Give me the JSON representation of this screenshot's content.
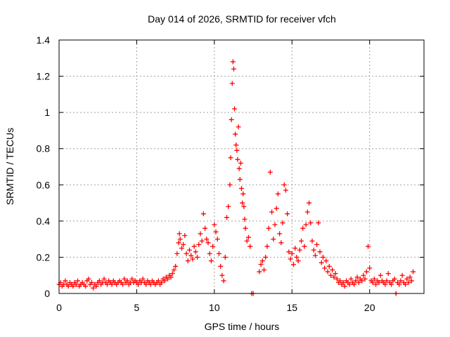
{
  "chart_data": {
    "type": "scatter",
    "title": "Day 014 of 2026, SRMTID for receiver vfch",
    "xlabel": "GPS time / hours",
    "ylabel": "SRMTID / TECUs",
    "xlim": [
      0,
      23.5
    ],
    "ylim": [
      0,
      1.4
    ],
    "x_ticks": [
      0,
      5,
      10,
      15,
      20
    ],
    "x_tick_labels": [
      "0",
      "5",
      "10",
      "15",
      "20"
    ],
    "y_ticks": [
      0,
      0.2,
      0.4,
      0.6,
      0.8,
      1.0,
      1.2,
      1.4
    ],
    "y_tick_labels": [
      "0",
      "0.2",
      "0.4",
      "0.6",
      "0.8",
      "1",
      "1.2",
      "1.4"
    ],
    "grid": true,
    "marker": "+",
    "series": [
      {
        "name": "SRMTID",
        "color": "#ff0000",
        "points": [
          [
            0.0,
            0.05
          ],
          [
            0.1,
            0.06
          ],
          [
            0.2,
            0.04
          ],
          [
            0.3,
            0.05
          ],
          [
            0.4,
            0.07
          ],
          [
            0.5,
            0.05
          ],
          [
            0.6,
            0.04
          ],
          [
            0.7,
            0.06
          ],
          [
            0.8,
            0.05
          ],
          [
            0.9,
            0.04
          ],
          [
            1.0,
            0.06
          ],
          [
            1.1,
            0.05
          ],
          [
            1.2,
            0.07
          ],
          [
            1.3,
            0.04
          ],
          [
            1.4,
            0.05
          ],
          [
            1.5,
            0.06
          ],
          [
            1.6,
            0.05
          ],
          [
            1.7,
            0.04
          ],
          [
            1.8,
            0.07
          ],
          [
            1.9,
            0.08
          ],
          [
            2.0,
            0.05
          ],
          [
            2.1,
            0.06
          ],
          [
            2.2,
            0.03
          ],
          [
            2.3,
            0.05
          ],
          [
            2.4,
            0.04
          ],
          [
            2.5,
            0.06
          ],
          [
            2.6,
            0.07
          ],
          [
            2.7,
            0.05
          ],
          [
            2.8,
            0.06
          ],
          [
            2.9,
            0.08
          ],
          [
            3.0,
            0.06
          ],
          [
            3.1,
            0.05
          ],
          [
            3.2,
            0.07
          ],
          [
            3.3,
            0.06
          ],
          [
            3.4,
            0.05
          ],
          [
            3.5,
            0.07
          ],
          [
            3.6,
            0.06
          ],
          [
            3.7,
            0.05
          ],
          [
            3.8,
            0.06
          ],
          [
            3.9,
            0.07
          ],
          [
            4.0,
            0.06
          ],
          [
            4.1,
            0.05
          ],
          [
            4.2,
            0.08
          ],
          [
            4.3,
            0.06
          ],
          [
            4.4,
            0.07
          ],
          [
            4.5,
            0.05
          ],
          [
            4.6,
            0.06
          ],
          [
            4.7,
            0.08
          ],
          [
            4.8,
            0.06
          ],
          [
            4.9,
            0.07
          ],
          [
            5.0,
            0.06
          ],
          [
            5.1,
            0.05
          ],
          [
            5.2,
            0.07
          ],
          [
            5.3,
            0.06
          ],
          [
            5.4,
            0.08
          ],
          [
            5.5,
            0.06
          ],
          [
            5.6,
            0.05
          ],
          [
            5.7,
            0.07
          ],
          [
            5.8,
            0.06
          ],
          [
            5.9,
            0.05
          ],
          [
            6.0,
            0.07
          ],
          [
            6.1,
            0.06
          ],
          [
            6.2,
            0.05
          ],
          [
            6.3,
            0.06
          ],
          [
            6.4,
            0.07
          ],
          [
            6.5,
            0.05
          ],
          [
            6.6,
            0.06
          ],
          [
            6.7,
            0.08
          ],
          [
            6.8,
            0.07
          ],
          [
            6.9,
            0.09
          ],
          [
            7.0,
            0.08
          ],
          [
            7.1,
            0.1
          ],
          [
            7.2,
            0.09
          ],
          [
            7.3,
            0.11
          ],
          [
            7.4,
            0.13
          ],
          [
            7.5,
            0.15
          ],
          [
            7.6,
            0.22
          ],
          [
            7.7,
            0.28
          ],
          [
            7.75,
            0.33
          ],
          [
            7.8,
            0.3
          ],
          [
            7.9,
            0.25
          ],
          [
            8.0,
            0.27
          ],
          [
            8.1,
            0.32
          ],
          [
            8.2,
            0.22
          ],
          [
            8.3,
            0.18
          ],
          [
            8.4,
            0.24
          ],
          [
            8.5,
            0.21
          ],
          [
            8.6,
            0.19
          ],
          [
            8.7,
            0.26
          ],
          [
            8.8,
            0.23
          ],
          [
            8.9,
            0.2
          ],
          [
            9.0,
            0.27
          ],
          [
            9.1,
            0.33
          ],
          [
            9.2,
            0.29
          ],
          [
            9.3,
            0.44
          ],
          [
            9.4,
            0.36
          ],
          [
            9.5,
            0.3
          ],
          [
            9.6,
            0.28
          ],
          [
            9.7,
            0.22
          ],
          [
            9.8,
            0.18
          ],
          [
            9.9,
            0.26
          ],
          [
            10.0,
            0.38
          ],
          [
            10.1,
            0.34
          ],
          [
            10.2,
            0.3
          ],
          [
            10.3,
            0.22
          ],
          [
            10.4,
            0.15
          ],
          [
            10.5,
            0.1
          ],
          [
            10.6,
            0.07
          ],
          [
            10.7,
            0.2
          ],
          [
            10.8,
            0.42
          ],
          [
            10.9,
            0.48
          ],
          [
            11.0,
            0.6
          ],
          [
            11.05,
            0.75
          ],
          [
            11.1,
            0.96
          ],
          [
            11.15,
            1.16
          ],
          [
            11.2,
            1.28
          ],
          [
            11.25,
            1.24
          ],
          [
            11.3,
            1.02
          ],
          [
            11.35,
            0.88
          ],
          [
            11.4,
            0.82
          ],
          [
            11.45,
            0.79
          ],
          [
            11.5,
            0.74
          ],
          [
            11.55,
            0.92
          ],
          [
            11.6,
            0.69
          ],
          [
            11.65,
            0.63
          ],
          [
            11.7,
            0.72
          ],
          [
            11.75,
            0.58
          ],
          [
            11.8,
            0.5
          ],
          [
            11.85,
            0.55
          ],
          [
            11.9,
            0.48
          ],
          [
            11.95,
            0.41
          ],
          [
            12.0,
            0.36
          ],
          [
            12.1,
            0.29
          ],
          [
            12.2,
            0.31
          ],
          [
            12.3,
            0.26
          ],
          [
            12.4,
            0.0
          ],
          [
            12.5,
            0.0
          ],
          [
            12.9,
            0.12
          ],
          [
            13.0,
            0.16
          ],
          [
            13.1,
            0.18
          ],
          [
            13.2,
            0.13
          ],
          [
            13.3,
            0.2
          ],
          [
            13.4,
            0.26
          ],
          [
            13.5,
            0.36
          ],
          [
            13.6,
            0.67
          ],
          [
            13.7,
            0.45
          ],
          [
            13.8,
            0.3
          ],
          [
            13.9,
            0.38
          ],
          [
            14.0,
            0.47
          ],
          [
            14.1,
            0.55
          ],
          [
            14.2,
            0.33
          ],
          [
            14.3,
            0.28
          ],
          [
            14.4,
            0.39
          ],
          [
            14.5,
            0.6
          ],
          [
            14.6,
            0.57
          ],
          [
            14.7,
            0.44
          ],
          [
            14.8,
            0.23
          ],
          [
            14.9,
            0.19
          ],
          [
            15.0,
            0.22
          ],
          [
            15.1,
            0.16
          ],
          [
            15.2,
            0.25
          ],
          [
            15.3,
            0.2
          ],
          [
            15.4,
            0.18
          ],
          [
            15.5,
            0.24
          ],
          [
            15.6,
            0.29
          ],
          [
            15.7,
            0.36
          ],
          [
            15.8,
            0.26
          ],
          [
            15.9,
            0.38
          ],
          [
            16.0,
            0.45
          ],
          [
            16.1,
            0.5
          ],
          [
            16.2,
            0.39
          ],
          [
            16.3,
            0.29
          ],
          [
            16.4,
            0.24
          ],
          [
            16.5,
            0.21
          ],
          [
            16.6,
            0.27
          ],
          [
            16.7,
            0.39
          ],
          [
            16.8,
            0.23
          ],
          [
            16.9,
            0.17
          ],
          [
            17.0,
            0.2
          ],
          [
            17.1,
            0.14
          ],
          [
            17.2,
            0.18
          ],
          [
            17.3,
            0.12
          ],
          [
            17.4,
            0.15
          ],
          [
            17.5,
            0.1
          ],
          [
            17.6,
            0.13
          ],
          [
            17.7,
            0.09
          ],
          [
            17.8,
            0.11
          ],
          [
            17.9,
            0.08
          ],
          [
            18.0,
            0.06
          ],
          [
            18.1,
            0.07
          ],
          [
            18.2,
            0.05
          ],
          [
            18.3,
            0.06
          ],
          [
            18.4,
            0.04
          ],
          [
            18.5,
            0.07
          ],
          [
            18.6,
            0.06
          ],
          [
            18.7,
            0.05
          ],
          [
            18.8,
            0.08
          ],
          [
            18.9,
            0.06
          ],
          [
            19.0,
            0.05
          ],
          [
            19.1,
            0.07
          ],
          [
            19.2,
            0.09
          ],
          [
            19.3,
            0.06
          ],
          [
            19.4,
            0.08
          ],
          [
            19.5,
            0.07
          ],
          [
            19.6,
            0.1
          ],
          [
            19.7,
            0.08
          ],
          [
            19.8,
            0.12
          ],
          [
            19.9,
            0.26
          ],
          [
            20.0,
            0.14
          ],
          [
            20.1,
            0.07
          ],
          [
            20.2,
            0.06
          ],
          [
            20.3,
            0.08
          ],
          [
            20.4,
            0.05
          ],
          [
            20.5,
            0.07
          ],
          [
            20.6,
            0.06
          ],
          [
            20.7,
            0.1
          ],
          [
            20.8,
            0.07
          ],
          [
            20.9,
            0.06
          ],
          [
            21.0,
            0.05
          ],
          [
            21.1,
            0.07
          ],
          [
            21.2,
            0.11
          ],
          [
            21.3,
            0.06
          ],
          [
            21.4,
            0.05
          ],
          [
            21.5,
            0.07
          ],
          [
            21.6,
            0.08
          ],
          [
            21.7,
            0.0
          ],
          [
            21.8,
            0.06
          ],
          [
            21.9,
            0.05
          ],
          [
            22.0,
            0.07
          ],
          [
            22.1,
            0.1
          ],
          [
            22.2,
            0.06
          ],
          [
            22.3,
            0.05
          ],
          [
            22.4,
            0.08
          ],
          [
            22.5,
            0.06
          ],
          [
            22.6,
            0.09
          ],
          [
            22.7,
            0.07
          ],
          [
            22.8,
            0.12
          ]
        ]
      }
    ]
  }
}
